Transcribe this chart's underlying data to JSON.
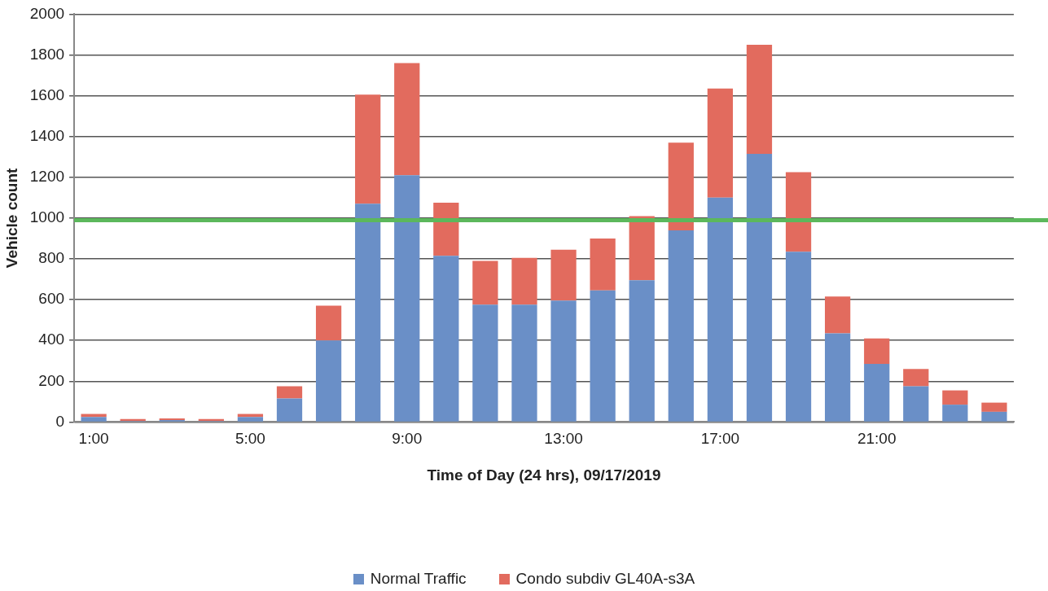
{
  "chart_data": {
    "type": "bar",
    "stacked": true,
    "xlabel": "Time of Day (24 hrs), 09/17/2019",
    "ylabel": "Vehicle count",
    "categories": [
      "1:00",
      null,
      null,
      null,
      "5:00",
      null,
      null,
      null,
      "9:00",
      null,
      null,
      null,
      "13:00",
      null,
      null,
      null,
      "17:00",
      null,
      null,
      null,
      "21:00",
      null,
      null,
      null
    ],
    "series": [
      {
        "name": "Normal Traffic",
        "color": "#6a8fc7",
        "values": [
          25,
          5,
          10,
          5,
          25,
          115,
          400,
          1070,
          1210,
          815,
          575,
          575,
          595,
          645,
          695,
          940,
          1100,
          1315,
          835,
          435,
          285,
          175,
          85,
          50
        ]
      },
      {
        "name": "Condo subdiv GL40A-s3A",
        "color": "#e26b5e",
        "values": [
          15,
          10,
          8,
          10,
          15,
          60,
          170,
          535,
          550,
          260,
          215,
          230,
          250,
          255,
          315,
          430,
          535,
          535,
          390,
          180,
          125,
          85,
          70,
          45
        ]
      }
    ],
    "ylim": [
      0,
      2000
    ],
    "yticks": [
      0,
      200,
      400,
      600,
      800,
      1000,
      1200,
      1400,
      1600,
      1800,
      2000
    ],
    "grid": "y",
    "legend": "bottom",
    "ref_lines": [
      {
        "axis": "y",
        "value": 990,
        "color": "#5cb85c"
      }
    ]
  }
}
